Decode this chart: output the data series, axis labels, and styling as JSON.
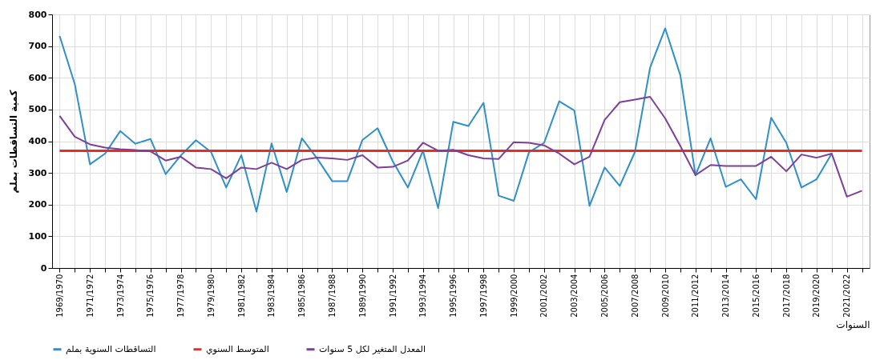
{
  "chart_data": {
    "type": "line",
    "xlabel": "السنوات",
    "ylabel": "كمية التساقطات بملم",
    "categories": [
      "1969/1970",
      null,
      "1971/1972",
      null,
      "1973/1974",
      null,
      "1975/1976",
      null,
      "1977/1978",
      null,
      "1979/1980",
      null,
      "1981/1982",
      null,
      "1983/1984",
      null,
      "1985/1986",
      null,
      "1987/1988",
      null,
      "1989/1990",
      null,
      "1991/1992",
      null,
      "1993/1994",
      null,
      "1995/1996",
      null,
      "1997/1998",
      null,
      "1999/2000",
      null,
      "2001/2002",
      null,
      "2003/2004",
      null,
      "2005/2006",
      null,
      "2007/2008",
      null,
      "2009/2010",
      null,
      "2011/2012",
      null,
      "2013/2014",
      null,
      "2015/2016",
      null,
      "2017/2018",
      null,
      "2019/2020",
      null,
      "2021/2022",
      null
    ],
    "series": [
      {
        "name": "التساقطات السنوية بملم",
        "color": "#2e8fc9",
        "values": [
          732,
          580,
          327,
          361,
          432,
          392,
          407,
          296,
          355,
          403,
          366,
          254,
          356,
          178,
          393,
          240,
          409,
          346,
          274,
          274,
          404,
          441,
          337,
          254,
          370,
          189,
          461,
          448,
          521,
          228,
          212,
          365,
          395,
          526,
          497,
          196,
          317,
          259,
          366,
          632,
          756,
          608,
          293,
          409,
          256,
          280,
          217,
          474,
          395,
          254,
          280,
          361,
          null,
          null
        ]
      },
      {
        "name": "المتوسط السنوي",
        "color": "#e0302a",
        "values": [
          370,
          370,
          370,
          370,
          370,
          370,
          370,
          370,
          370,
          370,
          370,
          370,
          370,
          370,
          370,
          370,
          370,
          370,
          370,
          370,
          370,
          370,
          370,
          370,
          370,
          370,
          370,
          370,
          370,
          370,
          370,
          370,
          370,
          370,
          370,
          370,
          370,
          370,
          370,
          370,
          370,
          370,
          370,
          370,
          370,
          370,
          370,
          370,
          370,
          370,
          370,
          370,
          370,
          370
        ]
      },
      {
        "name": "المعدل المتغير لكل 5 سنوات",
        "color": "#7e3f98",
        "values": [
          480,
          414,
          390,
          380,
          375,
          372,
          368,
          339,
          351,
          317,
          312,
          283,
          317,
          312,
          332,
          312,
          341,
          348,
          346,
          341,
          356,
          317,
          319,
          339,
          395,
          370,
          373,
          356,
          346,
          344,
          397,
          395,
          387,
          361,
          327,
          351,
          467,
          523,
          531,
          540,
          472,
          385,
          293,
          325,
          322,
          322,
          322,
          351,
          305,
          358,
          348,
          361,
          225,
          244
        ]
      }
    ],
    "ylim": [
      0,
      800
    ],
    "yticks": [
      0,
      100,
      200,
      300,
      400,
      500,
      600,
      700,
      800
    ],
    "grid": true,
    "legend": "bottom",
    "line_style": "solid"
  }
}
